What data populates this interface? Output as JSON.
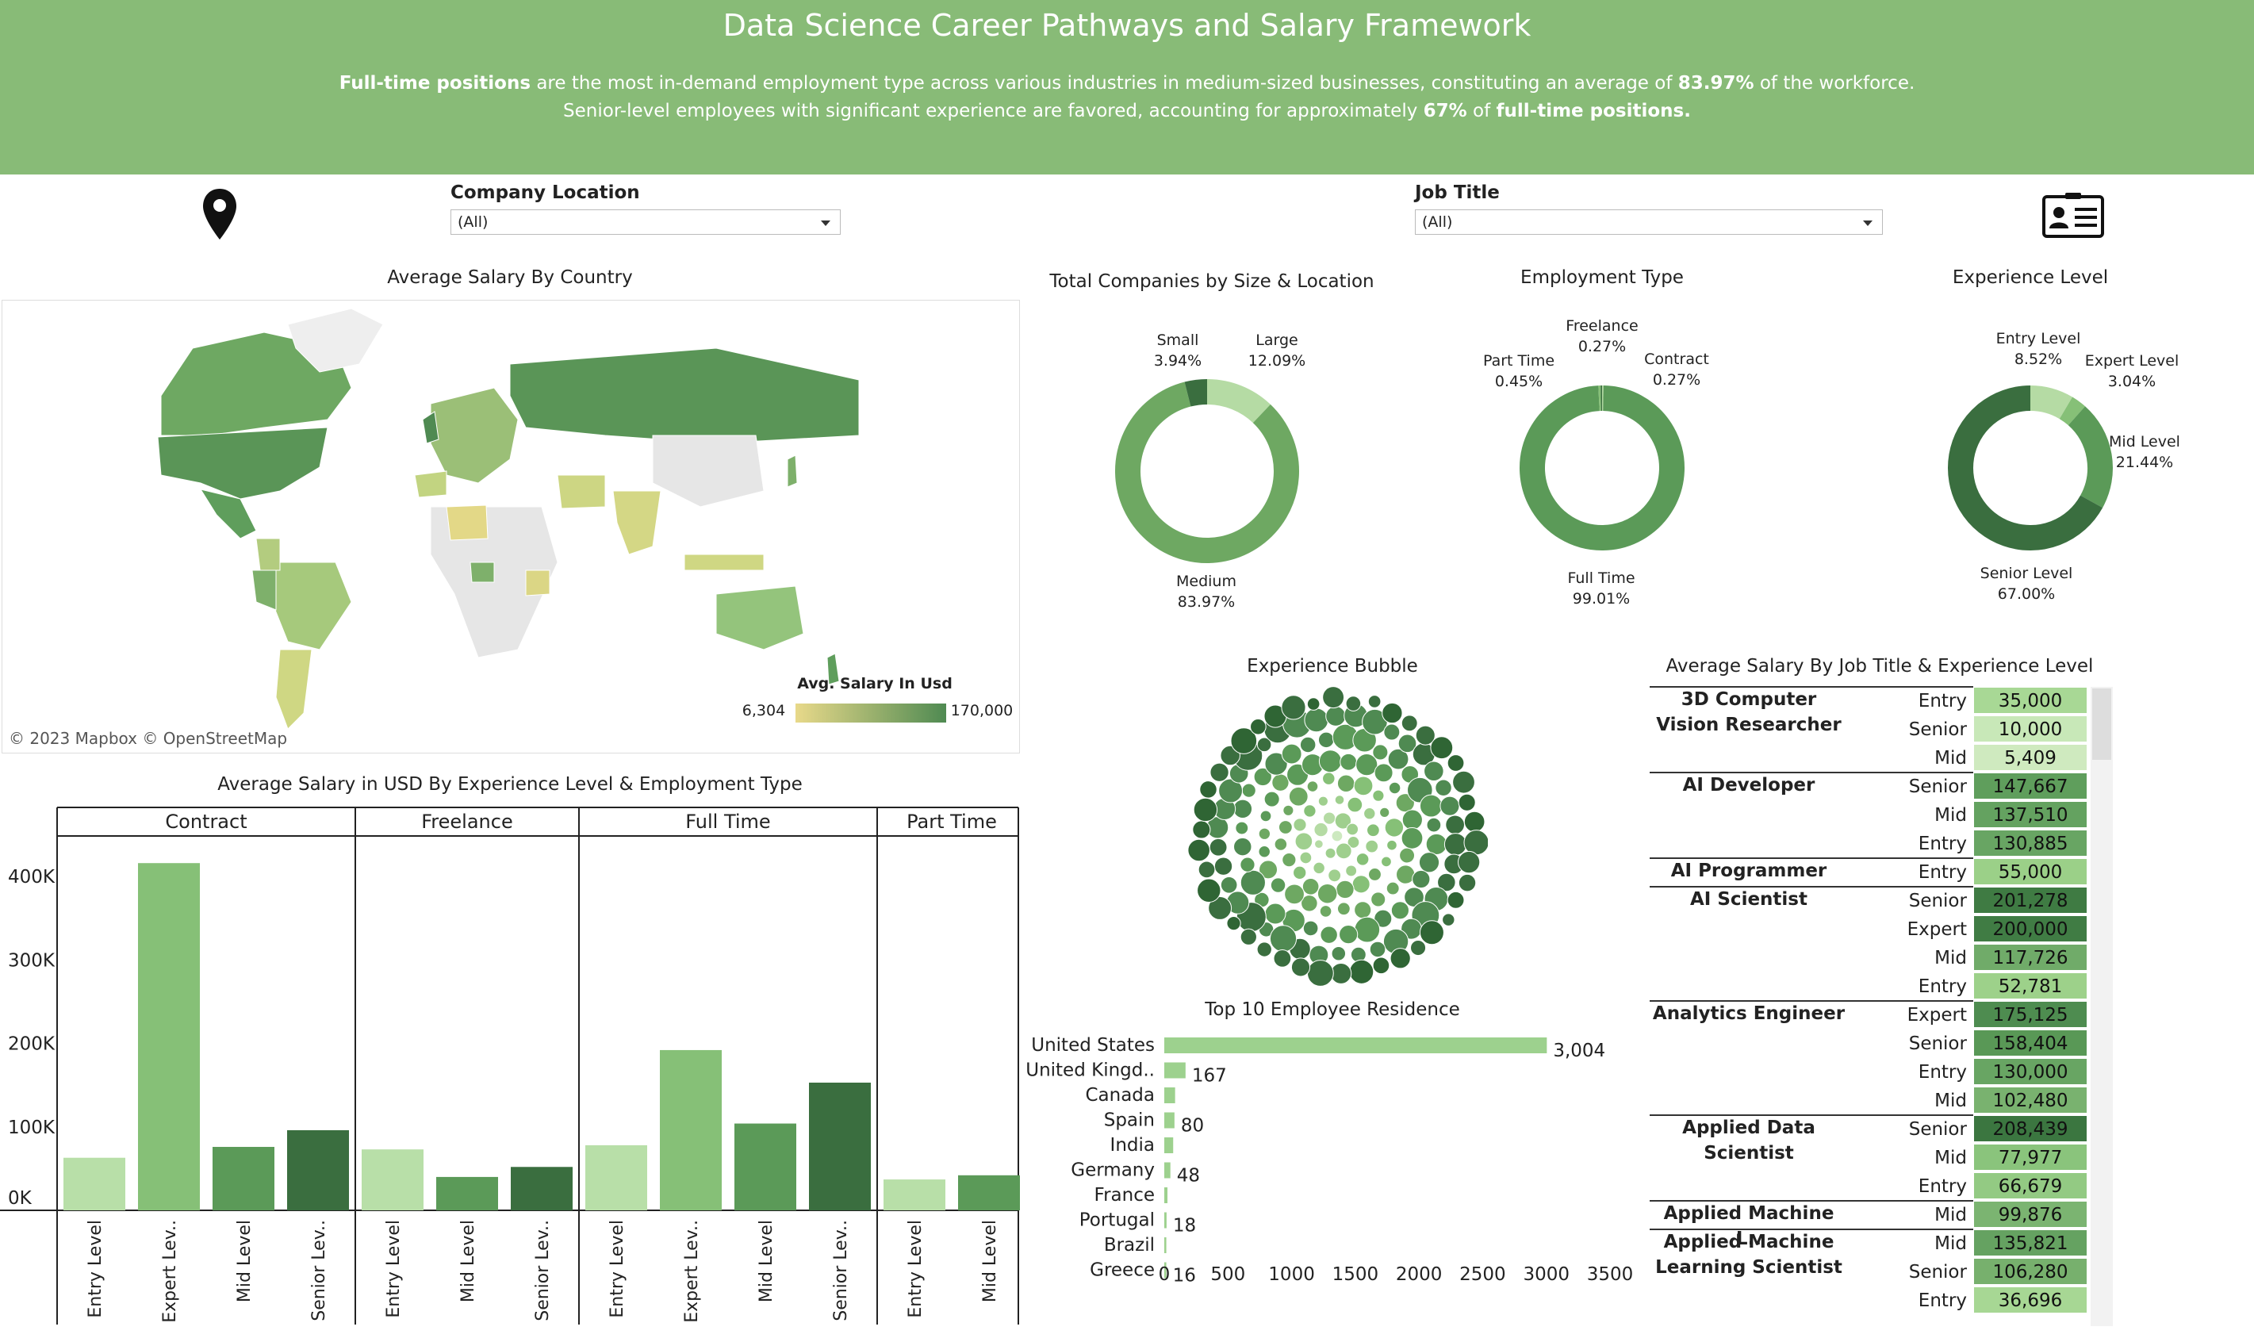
{
  "header": {
    "title": "Data Science Career Pathways and Salary Framework",
    "line1": {
      "b1": "Full-time positions",
      "t1": " are the most in-demand employment type across various industries in medium-sized businesses, constituting an average of ",
      "b2": "83.97%",
      "t2": " of the workforce."
    },
    "line2": {
      "t1": "Senior-level employees with significant experience are favored, accounting for approximately ",
      "b1": "67%",
      "t2": " of ",
      "b2": "full-time positions."
    }
  },
  "filters": {
    "company_location": {
      "label": "Company Location",
      "value": "(All)"
    },
    "job_title": {
      "label": "Job Title",
      "value": "(All)"
    }
  },
  "icons": {
    "location": "location-pin-icon",
    "id_card": "id-card-icon"
  },
  "map": {
    "title": "Average Salary By Country",
    "legend_title": "Avg. Salary In Usd",
    "legend_min": "6,304",
    "legend_max": "170,000",
    "attribution": "© 2023 Mapbox  © OpenStreetMap",
    "colors": {
      "low": "#e8d98a",
      "high": "#4f8a52"
    }
  },
  "donut_size": {
    "title": "Total Companies by Size & Location",
    "slices": [
      {
        "label": "Small",
        "pct": "3.94%",
        "value": 3.94,
        "color": "#3a6e3f"
      },
      {
        "label": "Large",
        "pct": "12.09%",
        "value": 12.09,
        "color": "#b5dba4"
      },
      {
        "label": "Medium",
        "pct": "83.97%",
        "value": 83.97,
        "color": "#6ea862"
      }
    ]
  },
  "donut_employment": {
    "title": "Employment Type",
    "slices": [
      {
        "label": "Freelance",
        "pct": "0.27%",
        "value": 0.27,
        "color": "#3a6e3f"
      },
      {
        "label": "Contract",
        "pct": "0.27%",
        "value": 0.27,
        "color": "#b5dba4"
      },
      {
        "label": "Full Time",
        "pct": "99.01%",
        "value": 99.01,
        "color": "#5b9a58"
      },
      {
        "label": "Part Time",
        "pct": "0.45%",
        "value": 0.45,
        "color": "#86c077"
      }
    ]
  },
  "donut_experience": {
    "title": "Experience Level",
    "slices": [
      {
        "label": "Entry Level",
        "pct": "8.52%",
        "value": 8.52,
        "color": "#b5dba4"
      },
      {
        "label": "Expert Level",
        "pct": "3.04%",
        "value": 3.04,
        "color": "#86c077"
      },
      {
        "label": "Mid Level",
        "pct": "21.44%",
        "value": 21.44,
        "color": "#5b9a58"
      },
      {
        "label": "Senior Level",
        "pct": "67.00%",
        "value": 67.0,
        "color": "#3a6e3f"
      }
    ]
  },
  "bubble": {
    "title": "Experience Bubble"
  },
  "bar_exp": {
    "title": "Average Salary in USD By Experience Level & Employment Type",
    "y_ticks": [
      "0K",
      "100K",
      "200K",
      "300K",
      "400K"
    ]
  },
  "chart_data": [
    {
      "type": "bar",
      "title": "Average Salary in USD By Experience Level & Employment Type",
      "ylim": [
        0,
        420000
      ],
      "groups": [
        {
          "name": "Contract",
          "bars": [
            {
              "label": "Entry Level",
              "value": 63000,
              "color": "#b8dfa8"
            },
            {
              "label": "Expert Lev..",
              "value": 416000,
              "color": "#86c077"
            },
            {
              "label": "Mid Level",
              "value": 76000,
              "color": "#5b9a58"
            },
            {
              "label": "Senior Lev..",
              "value": 96000,
              "color": "#3a6e3f"
            }
          ]
        },
        {
          "name": "Freelance",
          "bars": [
            {
              "label": "Entry Level",
              "value": 73000,
              "color": "#b8dfa8"
            },
            {
              "label": "Mid Level",
              "value": 40000,
              "color": "#5b9a58"
            },
            {
              "label": "Senior Lev..",
              "value": 52000,
              "color": "#3a6e3f"
            }
          ]
        },
        {
          "name": "Full Time",
          "bars": [
            {
              "label": "Entry Level",
              "value": 78000,
              "color": "#b8dfa8"
            },
            {
              "label": "Expert Lev..",
              "value": 192000,
              "color": "#86c077"
            },
            {
              "label": "Mid Level",
              "value": 104000,
              "color": "#5b9a58"
            },
            {
              "label": "Senior Lev..",
              "value": 153000,
              "color": "#3a6e3f"
            }
          ]
        },
        {
          "name": "Part Time",
          "bars": [
            {
              "label": "Entry Level",
              "value": 37000,
              "color": "#b8dfa8"
            },
            {
              "label": "Mid Level",
              "value": 42000,
              "color": "#5b9a58"
            }
          ]
        }
      ]
    },
    {
      "type": "bar",
      "title": "Top 10 Employee Residence",
      "xlim": [
        0,
        3500
      ],
      "x_ticks": [
        "0",
        "500",
        "1000",
        "1500",
        "2000",
        "2500",
        "3000",
        "3500"
      ],
      "categories": [
        "United States",
        "United Kingd..",
        "Canada",
        "Spain",
        "India",
        "Germany",
        "France",
        "Portugal",
        "Brazil",
        "Greece"
      ],
      "values": [
        3004,
        167,
        85,
        80,
        70,
        48,
        25,
        18,
        16,
        16
      ],
      "labels": [
        "3,004",
        "167",
        "",
        "80",
        "",
        "48",
        "",
        "18",
        "",
        "16"
      ],
      "color": "#9dd18e"
    }
  ],
  "residence": {
    "title": "Top 10 Employee Residence"
  },
  "table": {
    "title": "Average Salary By Job Title & Experience Level",
    "groups": [
      {
        "job": [
          "3D Computer",
          "Vision Researcher"
        ],
        "rows": [
          {
            "level": "Entry Level",
            "value": "35,000",
            "color": "#a8d895"
          },
          {
            "level": "Senior Level",
            "value": "10,000",
            "color": "#c8e8b8"
          },
          {
            "level": "Mid Level",
            "value": "5,409",
            "color": "#cfeabf"
          }
        ]
      },
      {
        "job": [
          "AI Developer"
        ],
        "rows": [
          {
            "level": "Senior Level",
            "value": "147,667",
            "color": "#5f9e5c"
          },
          {
            "level": "Mid Level",
            "value": "137,510",
            "color": "#64a260"
          },
          {
            "level": "Entry Level",
            "value": "130,885",
            "color": "#68a563"
          }
        ]
      },
      {
        "job": [
          "AI Programmer"
        ],
        "rows": [
          {
            "level": "Entry Level",
            "value": "55,000",
            "color": "#9bd088"
          }
        ]
      },
      {
        "job": [
          "AI Scientist"
        ],
        "rows": [
          {
            "level": "Senior Level",
            "value": "201,278",
            "color": "#3f7b43"
          },
          {
            "level": "Expert Level",
            "value": "200,000",
            "color": "#407c44"
          },
          {
            "level": "Mid Level",
            "value": "117,726",
            "color": "#70ab69"
          },
          {
            "level": "Entry Level",
            "value": "52,781",
            "color": "#9dd18a"
          }
        ]
      },
      {
        "job": [
          "Analytics Engineer"
        ],
        "rows": [
          {
            "level": "Expert Level",
            "value": "175,125",
            "color": "#4e8c50"
          },
          {
            "level": "Senior Level",
            "value": "158,404",
            "color": "#599856"
          },
          {
            "level": "Entry Level",
            "value": "130,000",
            "color": "#68a563"
          },
          {
            "level": "Mid Level",
            "value": "102,480",
            "color": "#79b26f"
          }
        ]
      },
      {
        "job": [
          "Applied Data",
          "Scientist"
        ],
        "rows": [
          {
            "level": "Senior Level",
            "value": "208,439",
            "color": "#3b7640"
          },
          {
            "level": "Mid Level",
            "value": "77,977",
            "color": "#8ac47c"
          },
          {
            "level": "Entry Level",
            "value": "66,679",
            "color": "#93ca83"
          }
        ]
      },
      {
        "job": [
          "Applied Machine L.."
        ],
        "rows": [
          {
            "level": "Mid Level",
            "value": "99,876",
            "color": "#7bb471"
          }
        ]
      },
      {
        "job": [
          "Applied Machine",
          "Learning Scientist"
        ],
        "rows": [
          {
            "level": "Mid Level",
            "value": "135,821",
            "color": "#65a261"
          },
          {
            "level": "Senior Level",
            "value": "106,280",
            "color": "#77b06d"
          },
          {
            "level": "Entry Level",
            "value": "36,696",
            "color": "#a7d794"
          }
        ]
      }
    ]
  }
}
